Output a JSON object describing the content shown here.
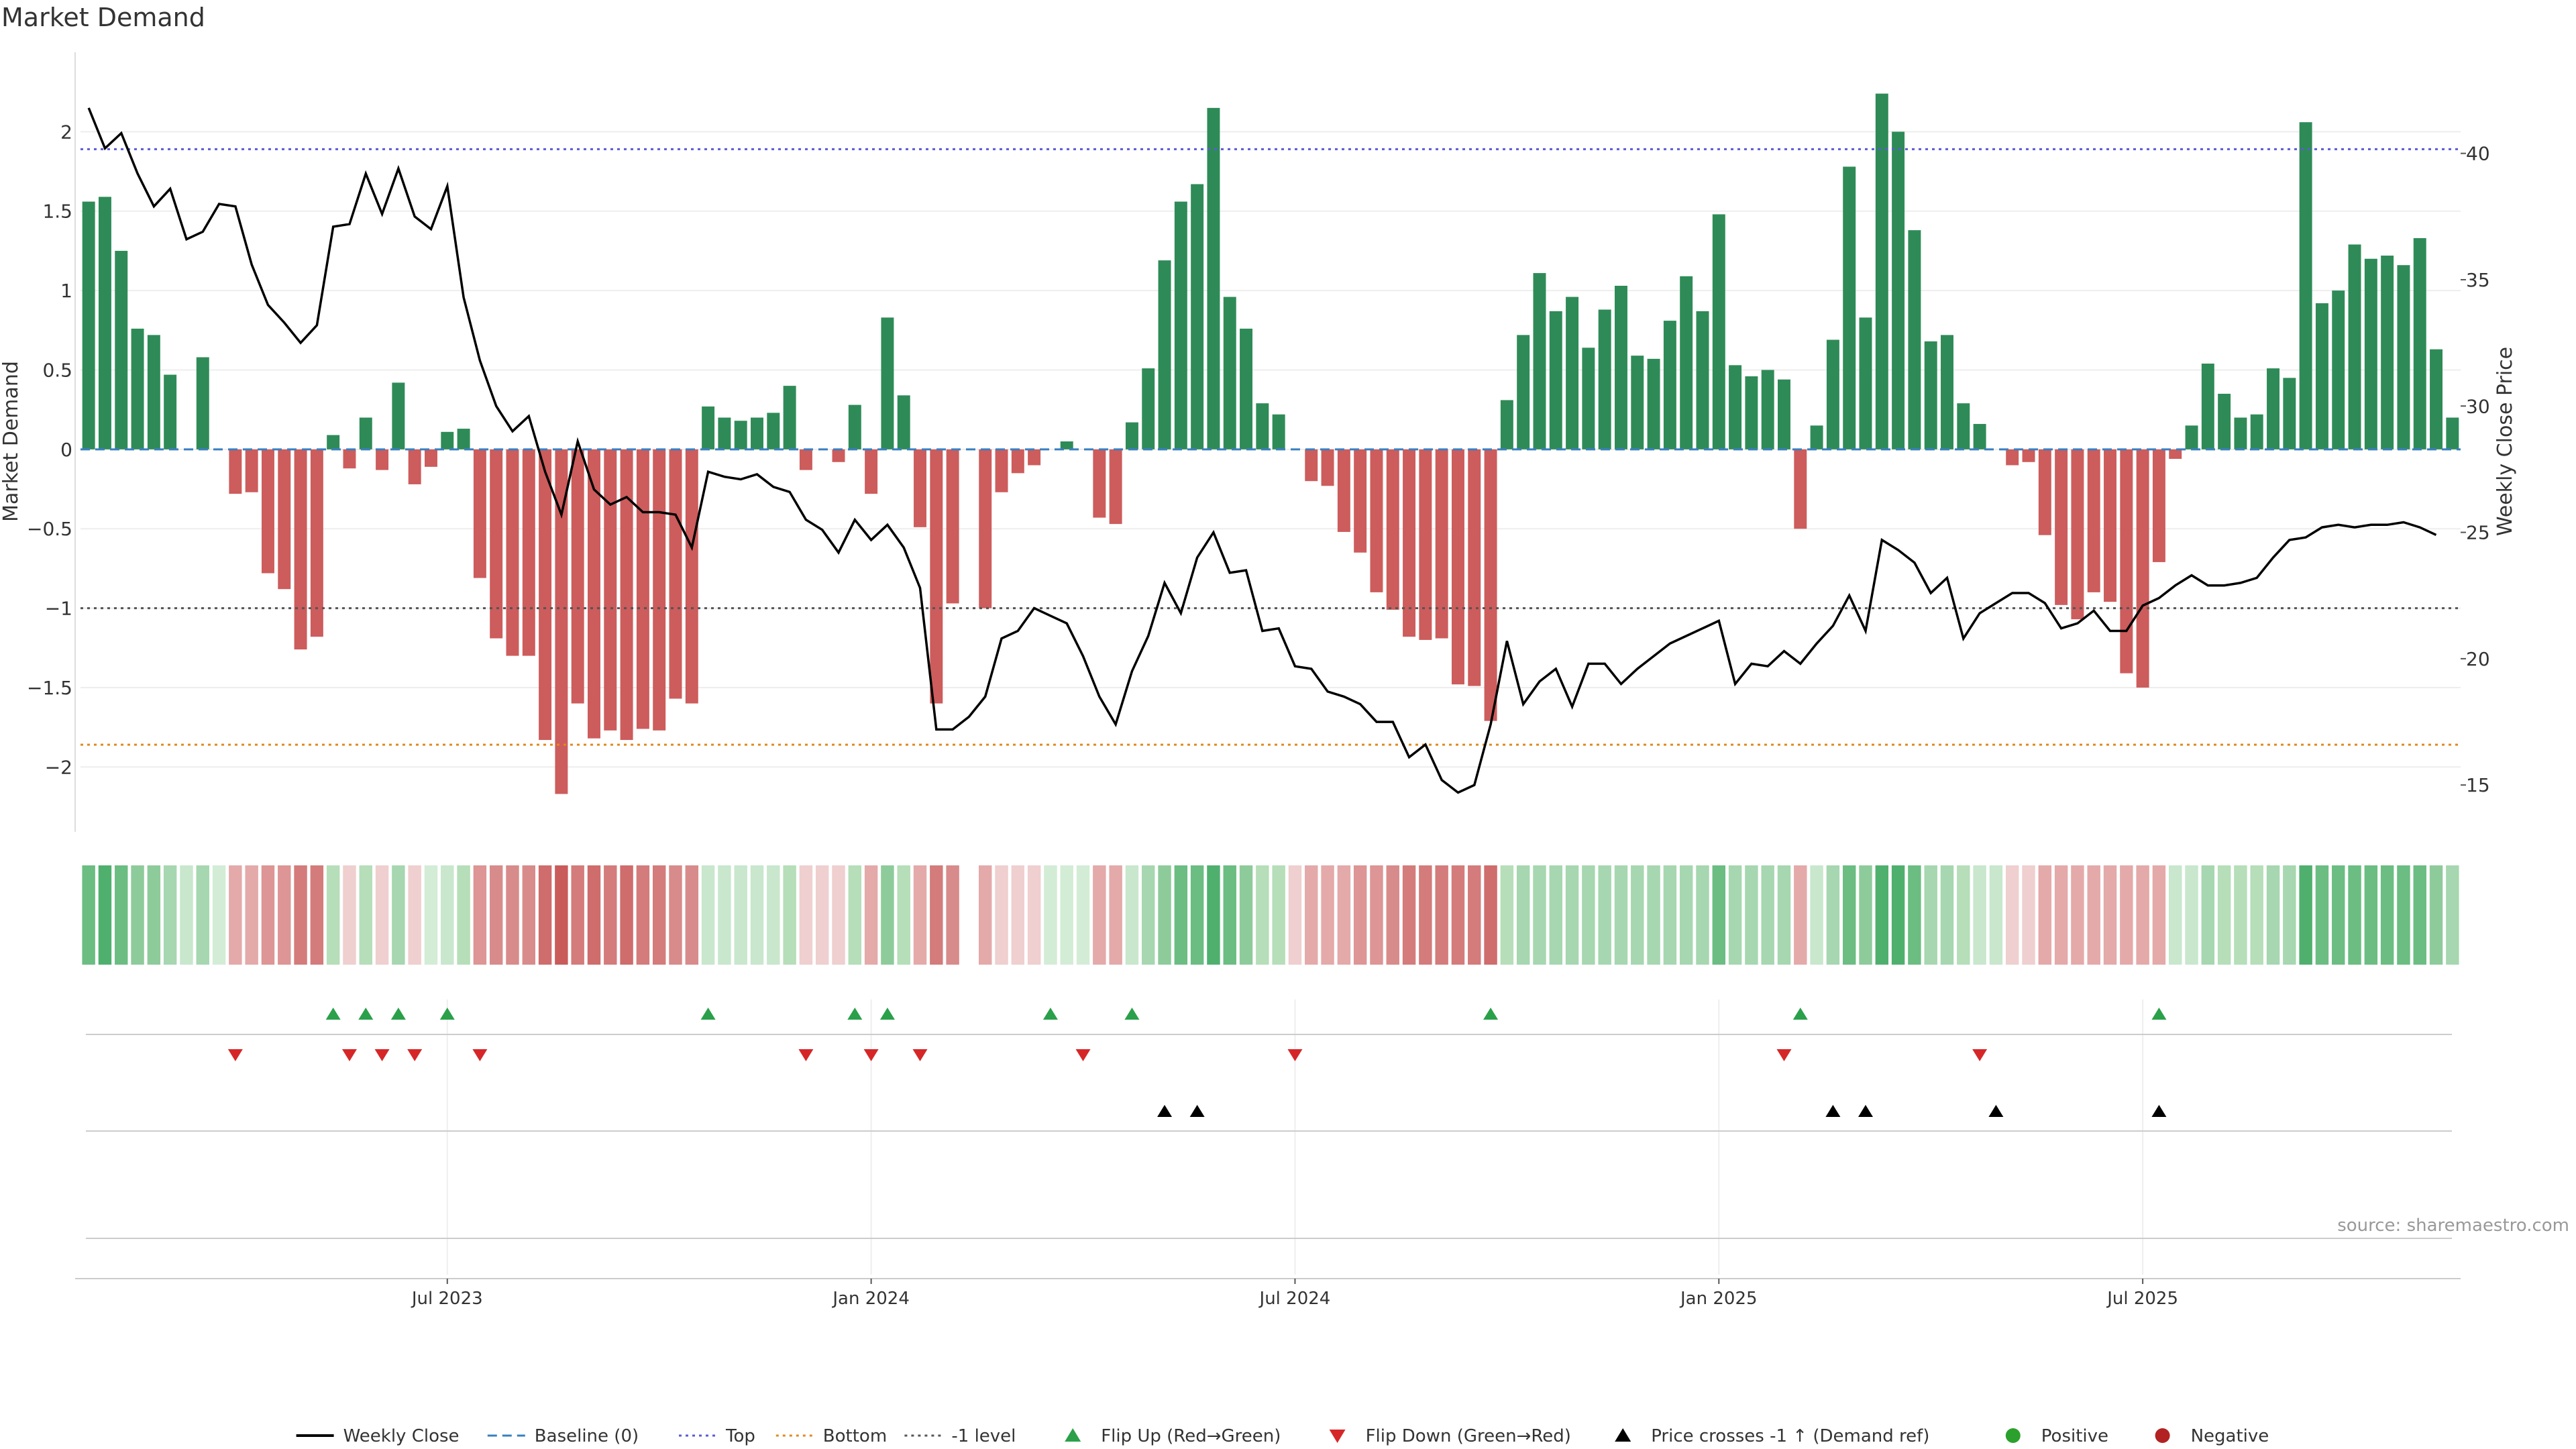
{
  "chart_data": {
    "type": "bar",
    "title": "Market Demand",
    "source": "source: sharemaestro.com",
    "ylabel_left": "Market Demand",
    "ylabel_right": "Weekly Close Price",
    "ylim_left": [
      -2.4,
      2.5
    ],
    "ylim_right": [
      13.2,
      44
    ],
    "yticks_left": [
      {
        "value": 2,
        "label": "2"
      },
      {
        "value": 1.5,
        "label": "1.5"
      },
      {
        "value": 1,
        "label": "1"
      },
      {
        "value": 0.5,
        "label": "0.5"
      },
      {
        "value": 0,
        "label": "0"
      },
      {
        "value": -0.5,
        "label": "−0.5"
      },
      {
        "value": -1,
        "label": "−1"
      },
      {
        "value": -1.5,
        "label": "−1.5"
      },
      {
        "value": -2,
        "label": "−2"
      }
    ],
    "yticks_right": [
      {
        "value": 40,
        "label": "40"
      },
      {
        "value": 35,
        "label": "35"
      },
      {
        "value": 30,
        "label": "30"
      },
      {
        "value": 25,
        "label": "25"
      },
      {
        "value": 20,
        "label": "20"
      },
      {
        "value": 15,
        "label": "15"
      }
    ],
    "xticks": [
      {
        "week": 22,
        "label": "Jul 2023"
      },
      {
        "week": 48,
        "label": "Jan 2024"
      },
      {
        "week": 74,
        "label": "Jul 2024"
      },
      {
        "week": 100,
        "label": "Jan 2025"
      },
      {
        "week": 126,
        "label": "Jul 2025"
      }
    ],
    "reference_lines": [
      {
        "name": "Top",
        "value": 1.89,
        "color": "#5b5bd6",
        "style": "dotted"
      },
      {
        "name": "-1 level",
        "value": -1,
        "color": "#555555",
        "style": "dotted"
      },
      {
        "name": "Bottom",
        "value": -1.86,
        "color": "#e08a1e",
        "style": "dotted"
      },
      {
        "name": "Baseline (0)",
        "value": 0,
        "color": "#3a7fc1",
        "style": "dashed"
      }
    ],
    "demand": [
      1.56,
      1.59,
      1.25,
      0.76,
      0.72,
      0.47,
      0,
      0.58,
      0,
      -0.28,
      -0.27,
      -0.78,
      -0.88,
      -1.26,
      -1.18,
      0.09,
      -0.12,
      0.2,
      -0.13,
      0.42,
      -0.22,
      -0.11,
      0.11,
      0.13,
      -0.81,
      -1.19,
      -1.3,
      -1.3,
      -1.83,
      -2.17,
      -1.6,
      -1.82,
      -1.77,
      -1.83,
      -1.76,
      -1.77,
      -1.57,
      -1.6,
      0.27,
      0.2,
      0.18,
      0.2,
      0.23,
      0.4,
      -0.13,
      0,
      -0.08,
      0.28,
      -0.28,
      0.83,
      0.34,
      -0.49,
      -1.6,
      -0.97,
      0,
      -1,
      -0.27,
      -0.15,
      -0.1,
      0,
      0.05,
      0,
      -0.43,
      -0.47,
      0.17,
      0.51,
      1.19,
      1.56,
      1.67,
      2.15,
      0.96,
      0.76,
      0.29,
      0.22,
      0,
      -0.2,
      -0.23,
      -0.52,
      -0.65,
      -0.9,
      -1.01,
      -1.18,
      -1.2,
      -1.19,
      -1.48,
      -1.49,
      -1.71,
      0.31,
      0.72,
      1.11,
      0.87,
      0.96,
      0.64,
      0.88,
      1.03,
      0.59,
      0.57,
      0.81,
      1.09,
      0.87,
      1.48,
      0.53,
      0.46,
      0.5,
      0.44,
      -0.5,
      0.15,
      0.69,
      1.78,
      0.83,
      2.24,
      2.0,
      1.38,
      0.68,
      0.72,
      0.29,
      0.16,
      0,
      -0.1,
      -0.08,
      -0.54,
      -0.98,
      -1.07,
      -0.9,
      -0.96,
      -1.41,
      -1.5,
      -0.71,
      -0.06,
      0.15,
      0.54,
      0.35,
      0.2,
      0.22,
      0.51,
      0.45,
      2.06,
      0.92,
      1.0,
      1.29,
      1.2,
      1.22,
      1.16,
      1.33,
      0.63,
      0.2
    ],
    "price": [
      41.8,
      40.2,
      40.8,
      39.2,
      37.9,
      38.6,
      36.6,
      36.9,
      38.0,
      37.9,
      35.6,
      34.0,
      33.3,
      32.5,
      33.2,
      37.1,
      37.2,
      39.2,
      37.6,
      39.4,
      37.5,
      37.0,
      38.7,
      34.3,
      31.8,
      30.0,
      29.0,
      29.6,
      27.4,
      25.7,
      28.6,
      26.7,
      26.1,
      26.4,
      25.8,
      25.8,
      25.7,
      24.4,
      27.4,
      27.2,
      27.1,
      27.3,
      26.8,
      26.6,
      25.5,
      25.1,
      24.2,
      25.5,
      24.7,
      25.3,
      24.4,
      22.8,
      17.2,
      17.2,
      17.7,
      18.5,
      20.8,
      21.1,
      22.0,
      21.7,
      21.4,
      20.1,
      18.5,
      17.4,
      19.5,
      20.9,
      23.0,
      21.8,
      24.0,
      25.0,
      23.4,
      23.5,
      21.1,
      21.2,
      19.7,
      19.6,
      18.7,
      18.5,
      18.2,
      17.5,
      17.5,
      16.1,
      16.6,
      15.2,
      14.7,
      15.0,
      17.4,
      20.7,
      18.2,
      19.1,
      19.6,
      18.1,
      19.8,
      19.8,
      19.0,
      19.6,
      20.1,
      20.6,
      20.9,
      21.2,
      21.5,
      19.0,
      19.8,
      19.7,
      20.3,
      19.8,
      20.6,
      21.3,
      22.5,
      21.1,
      24.7,
      24.3,
      23.8,
      22.6,
      23.2,
      20.8,
      21.8,
      22.2,
      22.6,
      22.6,
      22.2,
      21.2,
      21.4,
      21.9,
      21.1,
      21.1,
      22.1,
      22.4,
      22.9,
      23.3,
      22.9,
      22.9,
      23.0,
      23.2,
      24.0,
      24.7,
      24.8,
      25.2,
      25.3,
      25.2,
      25.3,
      25.3,
      25.4,
      25.2,
      24.9
    ],
    "strip_colors": [
      "#6bbd82",
      "#4fb06e",
      "#6bbd82",
      "#8ecb9b",
      "#8ecb9b",
      "#a6d7b0",
      "#c8e7cd",
      "#a6d7b0",
      "#d3ecd6",
      "#e4a9a9",
      "#e4a9a9",
      "#dd9595",
      "#dd9595",
      "#d47b7b",
      "#d47b7b",
      "#b5deb9",
      "#efcfcf",
      "#b5deb9",
      "#efcfcf",
      "#a6d7b0",
      "#efcfcf",
      "#d3ecd6",
      "#c8e7cd",
      "#b5deb9",
      "#dd9595",
      "#d88b8b",
      "#d88b8b",
      "#d88b8b",
      "#cf6c6c",
      "#c95b5b",
      "#d47b7b",
      "#cf6c6c",
      "#d47b7b",
      "#cf6c6c",
      "#d47b7b",
      "#d47b7b",
      "#d88b8b",
      "#d88b8b",
      "#c8e7cd",
      "#c8e7cd",
      "#c8e7cd",
      "#c8e7cd",
      "#c8e7cd",
      "#b5deb9",
      "#efcfcf",
      "#efcfcf",
      "#efcfcf",
      "#b5deb9",
      "#e4a9a9",
      "#8ecb9b",
      "#b5deb9",
      "#e4a9a9",
      "#d47b7b",
      "#d88b8b",
      "#ffffff",
      "#e4a9a9",
      "#efcfcf",
      "#efcfcf",
      "#efcfcf",
      "#d3ecd6",
      "#d3ecd6",
      "#d3ecd6",
      "#e4a9a9",
      "#e4a9a9",
      "#c8e7cd",
      "#a6d7b0",
      "#8ecb9b",
      "#6bbd82",
      "#6bbd82",
      "#4fb06e",
      "#6bbd82",
      "#8ecb9b",
      "#b5deb9",
      "#b5deb9",
      "#efcfcf",
      "#e4a9a9",
      "#e4a9a9",
      "#e4a9a9",
      "#dd9595",
      "#dd9595",
      "#d88b8b",
      "#d47b7b",
      "#d47b7b",
      "#d47b7b",
      "#d47b7b",
      "#d47b7b",
      "#cf6c6c",
      "#b5deb9",
      "#a6d7b0",
      "#a6d7b0",
      "#a6d7b0",
      "#a6d7b0",
      "#a6d7b0",
      "#a6d7b0",
      "#a6d7b0",
      "#a6d7b0",
      "#a6d7b0",
      "#a6d7b0",
      "#a6d7b0",
      "#a6d7b0",
      "#6bbd82",
      "#a6d7b0",
      "#a6d7b0",
      "#a6d7b0",
      "#a6d7b0",
      "#e4a9a9",
      "#c8e7cd",
      "#a6d7b0",
      "#6bbd82",
      "#8ecb9b",
      "#4fb06e",
      "#4fb06e",
      "#6bbd82",
      "#a6d7b0",
      "#a6d7b0",
      "#b5deb9",
      "#c8e7cd",
      "#c8e7cd",
      "#efcfcf",
      "#efcfcf",
      "#e4a9a9",
      "#e4a9a9",
      "#e4a9a9",
      "#e4a9a9",
      "#e4a9a9",
      "#e4a9a9",
      "#e4a9a9",
      "#e4a9a9",
      "#c8e7cd",
      "#c8e7cd",
      "#a6d7b0",
      "#b5deb9",
      "#b5deb9",
      "#b5deb9",
      "#a6d7b0",
      "#a6d7b0",
      "#4fb06e",
      "#6bbd82",
      "#6bbd82",
      "#6bbd82",
      "#6bbd82",
      "#6bbd82",
      "#6bbd82",
      "#6bbd82",
      "#8ecb9b",
      "#a6d7b0"
    ],
    "flip_up_weeks": [
      15,
      17,
      19,
      22,
      38,
      47,
      49,
      59,
      64,
      86,
      105,
      127
    ],
    "flip_down_weeks": [
      9,
      16,
      18,
      20,
      24,
      44,
      48,
      51,
      61,
      74,
      104,
      116
    ],
    "price_cross_weeks": [
      66,
      68,
      107,
      109,
      117,
      127
    ],
    "colors": {
      "positive": "#2e8b57",
      "negative": "#cd5c5c",
      "price_line": "#000000",
      "flip_up": "#2aa04a",
      "flip_down": "#d62728",
      "cross": "#000000",
      "positive_dot": "#2ca02c",
      "negative_dot": "#b22222"
    },
    "legend": [
      {
        "label": "Weekly Close",
        "kind": "line",
        "color": "#000000"
      },
      {
        "label": "Baseline (0)",
        "kind": "dash",
        "color": "#3a7fc1"
      },
      {
        "label": "Top",
        "kind": "dot",
        "color": "#5b5bd6"
      },
      {
        "label": "Bottom",
        "kind": "dot",
        "color": "#e08a1e"
      },
      {
        "label": "-1 level",
        "kind": "dot",
        "color": "#555555"
      },
      {
        "label": "Flip Up (Red→Green)",
        "kind": "tri-up",
        "color": "#2aa04a"
      },
      {
        "label": "Flip Down (Green→Red)",
        "kind": "tri-down",
        "color": "#d62728"
      },
      {
        "label": "Price crosses -1 ↑ (Demand ref)",
        "kind": "tri-up",
        "color": "#000000"
      },
      {
        "label": "Positive",
        "kind": "circle",
        "color": "#2ca02c"
      },
      {
        "label": "Negative",
        "kind": "circle",
        "color": "#b22222"
      }
    ],
    "legend_position": "bottom-center"
  }
}
